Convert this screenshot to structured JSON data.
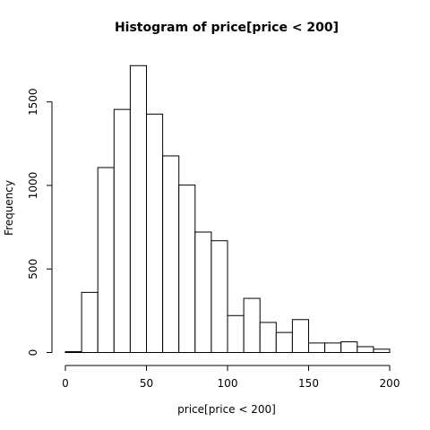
{
  "chart_data": {
    "type": "bar",
    "title": "Histogram of price[price < 200]",
    "xlabel": "price[price < 200]",
    "ylabel": "Frequency",
    "bin_edges": [
      0,
      10,
      20,
      30,
      40,
      50,
      60,
      70,
      80,
      90,
      100,
      110,
      120,
      130,
      140,
      150,
      160,
      170,
      180,
      190,
      200
    ],
    "values": [
      5,
      360,
      1107,
      1455,
      1717,
      1427,
      1177,
      1002,
      721,
      669,
      221,
      324,
      180,
      120,
      197,
      57,
      57,
      64,
      35,
      20
    ],
    "xlim": [
      0,
      200
    ],
    "ylim": [
      0,
      1800
    ],
    "x_ticks": [
      0,
      50,
      100,
      150,
      200
    ],
    "y_ticks": [
      0,
      500,
      1000,
      1500
    ],
    "grid": false
  }
}
